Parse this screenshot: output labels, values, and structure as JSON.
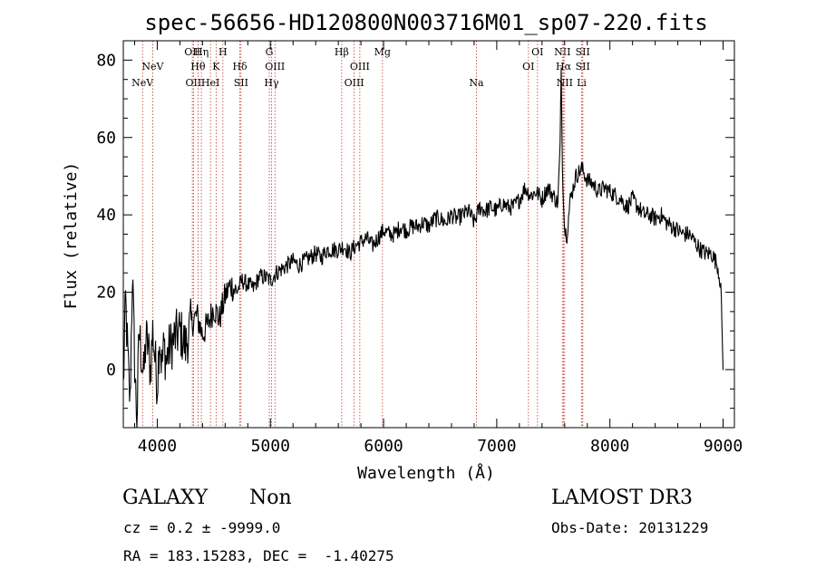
{
  "chart_data": {
    "type": "line",
    "title": "spec-56656-HD120800N003716M01_sp07-220.fits",
    "xlabel": "Wavelength (Å)",
    "ylabel": "Flux (relative)",
    "xlim": [
      3700,
      9100
    ],
    "ylim": [
      -15,
      85
    ],
    "xticks": [
      4000,
      5000,
      6000,
      7000,
      8000,
      9000
    ],
    "yticks": [
      0,
      20,
      40,
      60,
      80
    ],
    "series": [
      {
        "name": "flux",
        "x": [
          3700,
          3720,
          3740,
          3760,
          3780,
          3800,
          3820,
          3840,
          3860,
          3880,
          3900,
          3920,
          3940,
          3960,
          3980,
          4000,
          4020,
          4040,
          4060,
          4080,
          4100,
          4150,
          4200,
          4250,
          4300,
          4350,
          4400,
          4450,
          4500,
          4550,
          4600,
          4650,
          4700,
          4750,
          4800,
          4850,
          4900,
          4950,
          5000,
          5050,
          5100,
          5150,
          5200,
          5250,
          5300,
          5350,
          5400,
          5450,
          5500,
          5550,
          5600,
          5650,
          5700,
          5750,
          5800,
          5850,
          5900,
          5950,
          6000,
          6050,
          6100,
          6150,
          6200,
          6250,
          6300,
          6350,
          6400,
          6450,
          6500,
          6550,
          6600,
          6650,
          6700,
          6750,
          6800,
          6850,
          6900,
          6950,
          7000,
          7050,
          7100,
          7150,
          7200,
          7250,
          7300,
          7350,
          7400,
          7450,
          7500,
          7540,
          7560,
          7570,
          7580,
          7590,
          7600,
          7620,
          7650,
          7700,
          7750,
          7800,
          7850,
          7900,
          7950,
          8000,
          8050,
          8100,
          8150,
          8200,
          8250,
          8300,
          8350,
          8400,
          8450,
          8500,
          8550,
          8600,
          8650,
          8700,
          8750,
          8800,
          8850,
          8900,
          8950,
          8980,
          9000,
          9002
        ],
        "y": [
          -5,
          18,
          3,
          -9,
          25,
          2,
          -14,
          10,
          4,
          -2,
          8,
          6,
          0,
          10,
          3,
          -4,
          9,
          1,
          6,
          2,
          5,
          8,
          10,
          6,
          12,
          14,
          9,
          12,
          16,
          13,
          19,
          22,
          20,
          23,
          22,
          21,
          24,
          24,
          23,
          25,
          26,
          27,
          28,
          27,
          28,
          29,
          30,
          29,
          31,
          31,
          31,
          32,
          30,
          32,
          33,
          34,
          32,
          34,
          36,
          35,
          35,
          37,
          36,
          37,
          37,
          38,
          37,
          39,
          39,
          38,
          40,
          39,
          40,
          41,
          38,
          42,
          41,
          42,
          41,
          43,
          42,
          42,
          44,
          47,
          45,
          46,
          44,
          47,
          45,
          43,
          58,
          78,
          52,
          45,
          36,
          35,
          44,
          50,
          52,
          49,
          48,
          46,
          47,
          46,
          45,
          44,
          42,
          44,
          42,
          40,
          40,
          39,
          40,
          38,
          37,
          36,
          35,
          35,
          33,
          31,
          30,
          30,
          27,
          22,
          0,
          0
        ]
      }
    ],
    "lines": [
      {
        "label": "NeV",
        "row": 2,
        "x": 3870
      },
      {
        "label": "NeV",
        "row": 1,
        "x": 3960
      },
      {
        "label": "OII",
        "row": 0,
        "x": 4310
      },
      {
        "label": "OII",
        "row": 2,
        "x": 4320
      },
      {
        "label": "Hη",
        "row": 0,
        "x": 4390
      },
      {
        "label": "Hθ",
        "row": 1,
        "x": 4360
      },
      {
        "label": "HeI",
        "row": 2,
        "x": 4470
      },
      {
        "label": "K",
        "row": 1,
        "x": 4520
      },
      {
        "label": "H",
        "row": 0,
        "x": 4580
      },
      {
        "label": "Hδ",
        "row": 1,
        "x": 4730
      },
      {
        "label": "SII",
        "row": 2,
        "x": 4740
      },
      {
        "label": "G",
        "row": 0,
        "x": 4990
      },
      {
        "label": "OIII",
        "row": 1,
        "x": 5040
      },
      {
        "label": "Hγ",
        "row": 2,
        "x": 5010
      },
      {
        "label": "Hβ",
        "row": 0,
        "x": 5630
      },
      {
        "label": "OIII",
        "row": 1,
        "x": 5790
      },
      {
        "label": "OIII",
        "row": 2,
        "x": 5740
      },
      {
        "label": "Mg",
        "row": 0,
        "x": 5990
      },
      {
        "label": "Na",
        "row": 2,
        "x": 6820
      },
      {
        "label": "OI",
        "row": 0,
        "x": 7360
      },
      {
        "label": "OI",
        "row": 1,
        "x": 7280
      },
      {
        "label": "NII",
        "row": 0,
        "x": 7580
      },
      {
        "label": "Hα",
        "row": 1,
        "x": 7590
      },
      {
        "label": "NII",
        "row": 2,
        "x": 7600
      },
      {
        "label": "SII",
        "row": 0,
        "x": 7760
      },
      {
        "label": "SII",
        "row": 1,
        "x": 7760
      },
      {
        "label": "Li",
        "row": 2,
        "x": 7750
      }
    ]
  },
  "info": {
    "class": "GALAXY",
    "subclass": "Non",
    "survey": "LAMOST DR3",
    "cz_line": "cz = 0.2 ± -9999.0",
    "obs_date": "Obs-Date: 20131229",
    "radec_line": "RA = 183.15283, DEC =  -1.40275"
  }
}
